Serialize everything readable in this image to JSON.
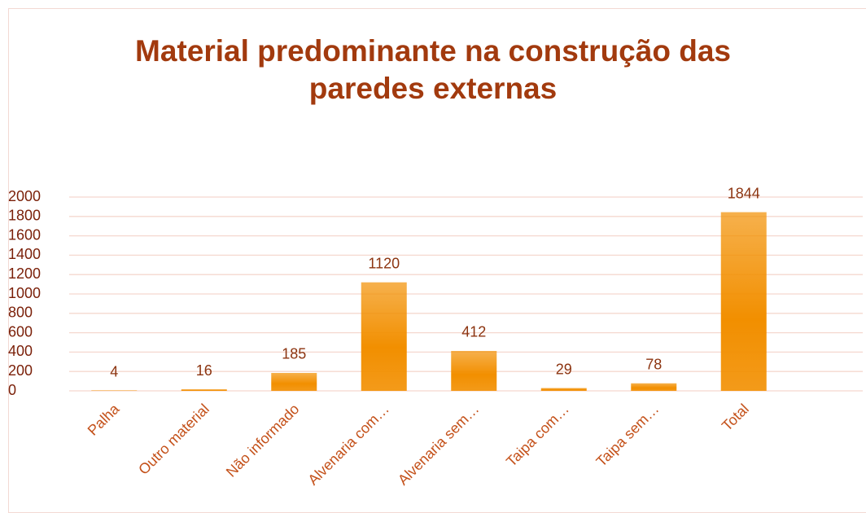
{
  "chart_data": {
    "type": "bar",
    "title": "Material predominante na construção das paredes externas",
    "categories": [
      "Palha",
      "Outro material",
      "Não informado",
      "Alvenaria com…",
      "Alvenaria sem…",
      "Taipa com…",
      "Taipa sem…",
      "Total"
    ],
    "values": [
      4,
      16,
      185,
      1120,
      412,
      29,
      78,
      1844
    ],
    "color": "#f28f00",
    "ylim": [
      0,
      2000
    ],
    "yticks": [
      0,
      200,
      400,
      600,
      800,
      1000,
      1200,
      1400,
      1600,
      1800,
      2000
    ],
    "grid": true
  }
}
